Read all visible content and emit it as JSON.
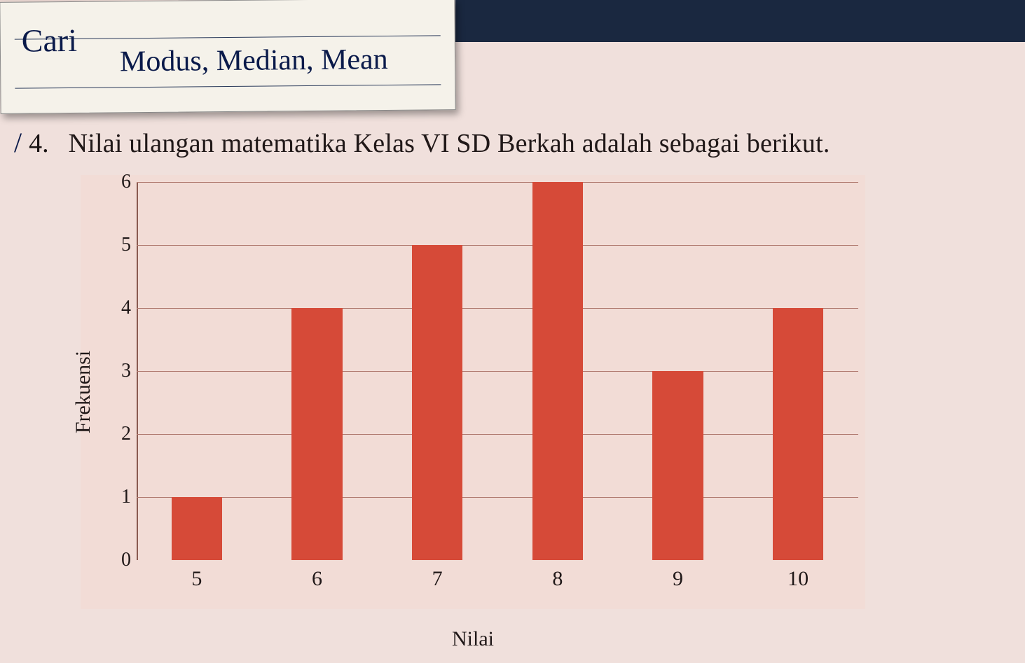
{
  "note": {
    "line1": "Cari",
    "line2": "Modus, Median, Mean",
    "paper_bg": "#f5f2ea",
    "rule_color": "#2a3a5a",
    "ink_color": "#0a1a4a"
  },
  "question": {
    "number": "4.",
    "slash": "/",
    "text": "Nilai ulangan matematika Kelas VI SD Berkah adalah sebagai berikut."
  },
  "chart": {
    "type": "bar",
    "ylabel": "Frekuensi",
    "xlabel": "Nilai",
    "categories": [
      "5",
      "6",
      "7",
      "8",
      "9",
      "10"
    ],
    "values": [
      1,
      4,
      5,
      6,
      3,
      4
    ],
    "bar_color": "#d64a38",
    "grid_color": "#b07a70",
    "axis_color": "#8a5a50",
    "background_color": "#f2dcd6",
    "text_color": "#201818",
    "ylim": [
      0,
      6
    ],
    "ytick_step": 1,
    "yticks": [
      0,
      1,
      2,
      3,
      4,
      5,
      6
    ],
    "bar_width": 0.42,
    "label_fontsize": 30,
    "tick_fontsize": 28
  },
  "page": {
    "background_color": "#f0e0dc",
    "dark_strip_color": "#1a2840"
  }
}
